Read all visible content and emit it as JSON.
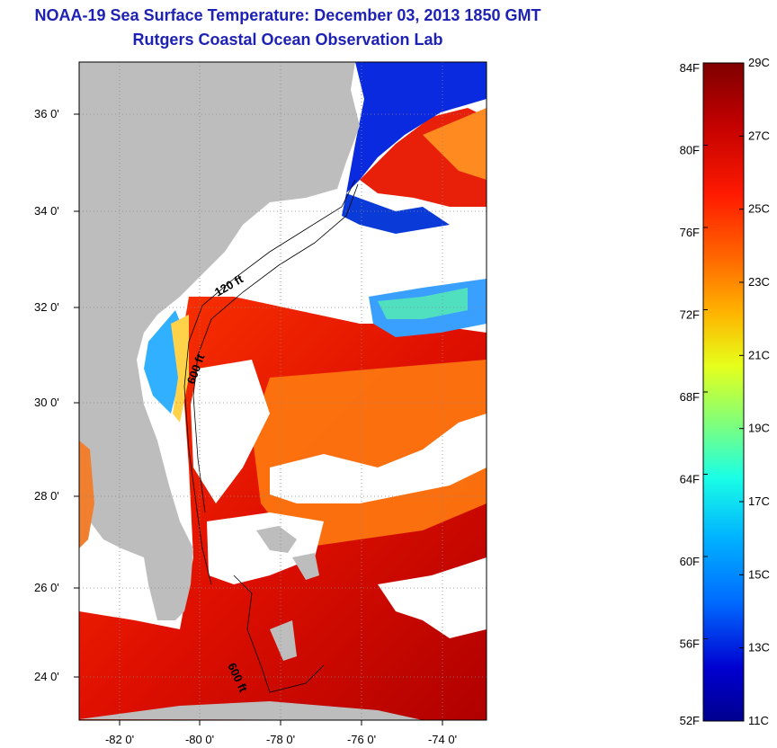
{
  "title_line1": "NOAA-19 Sea Surface Temperature:  December 03, 2013 1850 GMT",
  "title_line2": "Rutgers Coastal Ocean Observation Lab",
  "lat_labels": [
    "36 0'",
    "34 0'",
    "32 0'",
    "30 0'",
    "28 0'",
    "26 0'",
    "24 0'"
  ],
  "lon_labels": [
    "-82 0'",
    "-80 0'",
    "-78 0'",
    "-76 0'",
    "-74 0'"
  ],
  "isobath_labels": [
    "120 ft",
    "600 ft",
    "600 ft"
  ],
  "colorbar": {
    "fahrenheit": [
      "84F",
      "80F",
      "76F",
      "72F",
      "68F",
      "64F",
      "60F",
      "56F",
      "52F"
    ],
    "celsius": [
      "29C",
      "27C",
      "25C",
      "23C",
      "21C",
      "19C",
      "17C",
      "15C",
      "13C",
      "11C"
    ],
    "colors": [
      "#7f0000",
      "#c00000",
      "#ff1a00",
      "#ff6a00",
      "#ffb400",
      "#e6ff1a",
      "#7dff7d",
      "#1affe6",
      "#00b4ff",
      "#006aff",
      "#0000d0",
      "#00008f"
    ]
  },
  "colors": {
    "land": "#bdbdbd",
    "title": "#1e22b4",
    "cloud": "#ffffff"
  }
}
